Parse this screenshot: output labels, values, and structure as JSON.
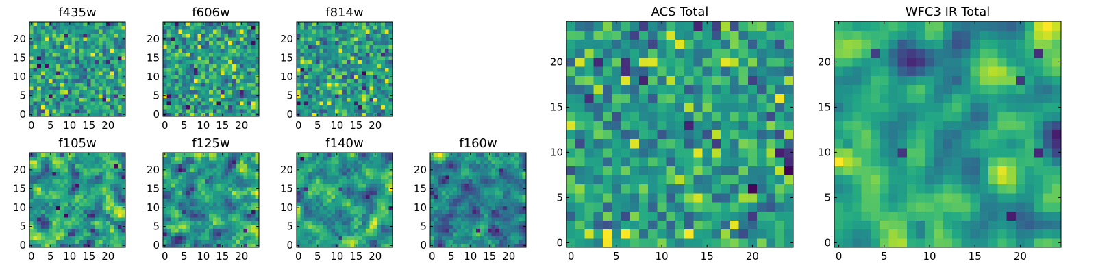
{
  "figure": {
    "background": "#ffffff"
  },
  "chart_data": [
    {
      "type": "heatmap",
      "title": "f435w",
      "grid": false,
      "seed": 1,
      "smooth": 0,
      "x_ticks": [
        0,
        5,
        10,
        15,
        20
      ],
      "y_ticks": [
        0,
        5,
        10,
        15,
        20
      ],
      "xlim": [
        -0.5,
        24.5
      ],
      "ylim": [
        -0.5,
        24.5
      ],
      "nx": 25,
      "ny": 25,
      "colormap": "viridis"
    },
    {
      "type": "heatmap",
      "title": "f606w",
      "grid": false,
      "seed": 2,
      "smooth": 0,
      "x_ticks": [
        0,
        5,
        10,
        15,
        20
      ],
      "y_ticks": [
        0,
        5,
        10,
        15,
        20
      ],
      "xlim": [
        -0.5,
        24.5
      ],
      "ylim": [
        -0.5,
        24.5
      ],
      "nx": 25,
      "ny": 25,
      "colormap": "viridis"
    },
    {
      "type": "heatmap",
      "title": "f814w",
      "grid": false,
      "seed": 3,
      "smooth": 0,
      "x_ticks": [
        0,
        5,
        10,
        15,
        20
      ],
      "y_ticks": [
        0,
        5,
        10,
        15,
        20
      ],
      "xlim": [
        -0.5,
        24.5
      ],
      "ylim": [
        -0.5,
        24.5
      ],
      "nx": 25,
      "ny": 25,
      "colormap": "viridis"
    },
    {
      "type": "heatmap",
      "title": "f105w",
      "grid": false,
      "seed": 4,
      "smooth": 1,
      "x_ticks": [
        0,
        5,
        10,
        15,
        20
      ],
      "y_ticks": [
        0,
        5,
        10,
        15,
        20
      ],
      "xlim": [
        -0.5,
        24.5
      ],
      "ylim": [
        -0.5,
        24.5
      ],
      "nx": 25,
      "ny": 25,
      "colormap": "viridis"
    },
    {
      "type": "heatmap",
      "title": "f125w",
      "grid": false,
      "seed": 5,
      "smooth": 1,
      "x_ticks": [
        0,
        5,
        10,
        15,
        20
      ],
      "y_ticks": [
        0,
        5,
        10,
        15,
        20
      ],
      "xlim": [
        -0.5,
        24.5
      ],
      "ylim": [
        -0.5,
        24.5
      ],
      "nx": 25,
      "ny": 25,
      "colormap": "viridis"
    },
    {
      "type": "heatmap",
      "title": "f140w",
      "grid": false,
      "seed": 6,
      "smooth": 1,
      "x_ticks": [
        0,
        5,
        10,
        15,
        20
      ],
      "y_ticks": [
        0,
        5,
        10,
        15,
        20
      ],
      "xlim": [
        -0.5,
        24.5
      ],
      "ylim": [
        -0.5,
        24.5
      ],
      "nx": 25,
      "ny": 25,
      "colormap": "viridis"
    },
    {
      "type": "heatmap",
      "title": "f160w",
      "grid": false,
      "seed": 7,
      "smooth": 1,
      "x_ticks": [
        0,
        5,
        10,
        15,
        20
      ],
      "y_ticks": [
        0,
        5,
        10,
        15,
        20
      ],
      "xlim": [
        -0.5,
        24.5
      ],
      "ylim": [
        -0.5,
        24.5
      ],
      "nx": 25,
      "ny": 25,
      "colormap": "viridis"
    },
    {
      "type": "heatmap",
      "title": "ACS Total",
      "grid": false,
      "seed": 8,
      "smooth": 0,
      "x_ticks": [
        0,
        5,
        10,
        15,
        20
      ],
      "y_ticks": [
        0,
        5,
        10,
        15,
        20
      ],
      "xlim": [
        -0.5,
        24.5
      ],
      "ylim": [
        -0.5,
        24.5
      ],
      "nx": 25,
      "ny": 25,
      "colormap": "viridis"
    },
    {
      "type": "heatmap",
      "title": "WFC3 IR Total",
      "grid": false,
      "seed": 9,
      "smooth": 2,
      "x_ticks": [
        0,
        5,
        10,
        15,
        20
      ],
      "y_ticks": [
        0,
        5,
        10,
        15,
        20
      ],
      "xlim": [
        -0.5,
        24.5
      ],
      "ylim": [
        -0.5,
        24.5
      ],
      "nx": 25,
      "ny": 25,
      "colormap": "viridis"
    }
  ]
}
